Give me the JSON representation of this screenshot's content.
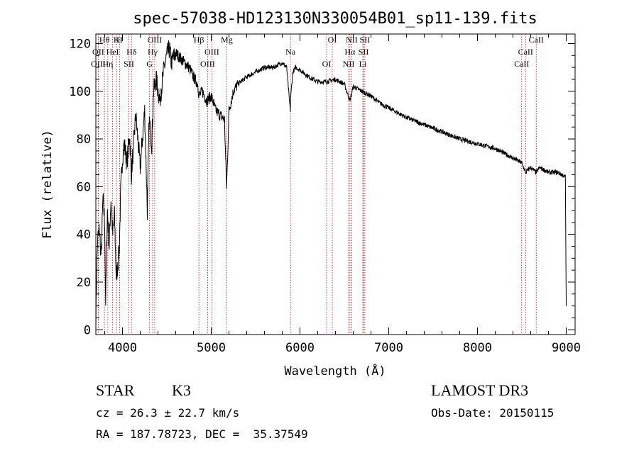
{
  "chart_data": {
    "type": "line",
    "title": "spec-57038-HD123130N330054B01_sp11-139.fits",
    "xlabel": "Wavelength (Å)",
    "ylabel": "Flux (relative)",
    "xlim": [
      3700,
      9100
    ],
    "ylim": [
      -2,
      124
    ],
    "xticks": [
      4000,
      5000,
      6000,
      7000,
      8000,
      9000
    ],
    "xtick_labels": [
      "4000",
      "5000",
      "6000",
      "7000",
      "8000",
      "9000"
    ],
    "yticks": [
      0,
      20,
      40,
      60,
      80,
      100,
      120
    ],
    "ytick_labels": [
      "0",
      "20",
      "40",
      "60",
      "80",
      "100",
      "120"
    ],
    "series": [
      {
        "name": "Flux",
        "x": [
          3700,
          3710,
          3720,
          3740,
          3760,
          3780,
          3800,
          3810,
          3830,
          3850,
          3870,
          3890,
          3910,
          3930,
          3950,
          3965,
          3980,
          4000,
          4020,
          4050,
          4080,
          4100,
          4150,
          4200,
          4250,
          4280,
          4300,
          4330,
          4350,
          4380,
          4420,
          4470,
          4500,
          4530,
          4550,
          4600,
          4650,
          4700,
          4750,
          4800,
          4850,
          4861,
          4900,
          4950,
          5000,
          5050,
          5100,
          5150,
          5172,
          5183,
          5200,
          5250,
          5300,
          5400,
          5500,
          5600,
          5700,
          5800,
          5850,
          5890,
          5896,
          5920,
          5950,
          6000,
          6100,
          6200,
          6300,
          6400,
          6500,
          6563,
          6600,
          6700,
          6800,
          6900,
          7000,
          7200,
          7400,
          7600,
          7800,
          8000,
          8200,
          8400,
          8498,
          8542,
          8600,
          8662,
          8700,
          8800,
          8900,
          8950,
          8990,
          9000
        ],
        "values": [
          2,
          25,
          38,
          42,
          30,
          55,
          45,
          12,
          50,
          35,
          55,
          40,
          48,
          22,
          28,
          35,
          58,
          72,
          78,
          70,
          82,
          65,
          90,
          68,
          92,
          50,
          88,
          78,
          100,
          105,
          96,
          110,
          115,
          118,
          112,
          116,
          114,
          112,
          110,
          106,
          103,
          98,
          100,
          96,
          98,
          92,
          90,
          88,
          60,
          70,
          92,
          100,
          103,
          106,
          108,
          110,
          110,
          112,
          110,
          92,
          98,
          108,
          110,
          109,
          106,
          104,
          104,
          105,
          103,
          96,
          102,
          100,
          98,
          95,
          93,
          89,
          86,
          83,
          80,
          78,
          76,
          72,
          70,
          66,
          68,
          66,
          68,
          66,
          66,
          65,
          64,
          10
        ]
      }
    ],
    "line_markers": [
      {
        "label": "Hθ",
        "wavelength": 3797
      },
      {
        "label": "OII",
        "wavelength": 3727
      },
      {
        "label": "OIII",
        "wavelength": 3727
      },
      {
        "label": "K",
        "wavelength": 3934
      },
      {
        "label": "HeI",
        "wavelength": 3889
      },
      {
        "label": "Hη",
        "wavelength": 3835
      },
      {
        "label": "H",
        "wavelength": 3968
      },
      {
        "label": "Hδ",
        "wavelength": 4102
      },
      {
        "label": "SII",
        "wavelength": 4072
      },
      {
        "label": "OIII",
        "wavelength": 4363
      },
      {
        "label": "Hγ",
        "wavelength": 4340
      },
      {
        "label": "G",
        "wavelength": 4305
      },
      {
        "label": "Hβ",
        "wavelength": 4861
      },
      {
        "label": "OIII",
        "wavelength": 5007
      },
      {
        "label": "OIII",
        "wavelength": 4959
      },
      {
        "label": "Mg",
        "wavelength": 5175
      },
      {
        "label": "Na",
        "wavelength": 5893
      },
      {
        "label": "OI",
        "wavelength": 6300
      },
      {
        "label": "OI",
        "wavelength": 6364
      },
      {
        "label": "Hα",
        "wavelength": 6563
      },
      {
        "label": "NII",
        "wavelength": 6548
      },
      {
        "label": "NII",
        "wavelength": 6583
      },
      {
        "label": "SII",
        "wavelength": 6716
      },
      {
        "label": "Li",
        "wavelength": 6708
      },
      {
        "label": "SII",
        "wavelength": 6731
      },
      {
        "label": "CaII",
        "wavelength": 8542
      },
      {
        "label": "CaII",
        "wavelength": 8498
      },
      {
        "label": "CaII",
        "wavelength": 8662
      }
    ]
  },
  "info": {
    "class_label": "STAR",
    "subclass": "K3",
    "cz": "cz = 26.3 ± 22.7 km/s",
    "radec": "RA = 187.78723, DEC =  35.37549",
    "survey": "LAMOST DR3",
    "obs_date": "Obs-Date: 20150115"
  }
}
